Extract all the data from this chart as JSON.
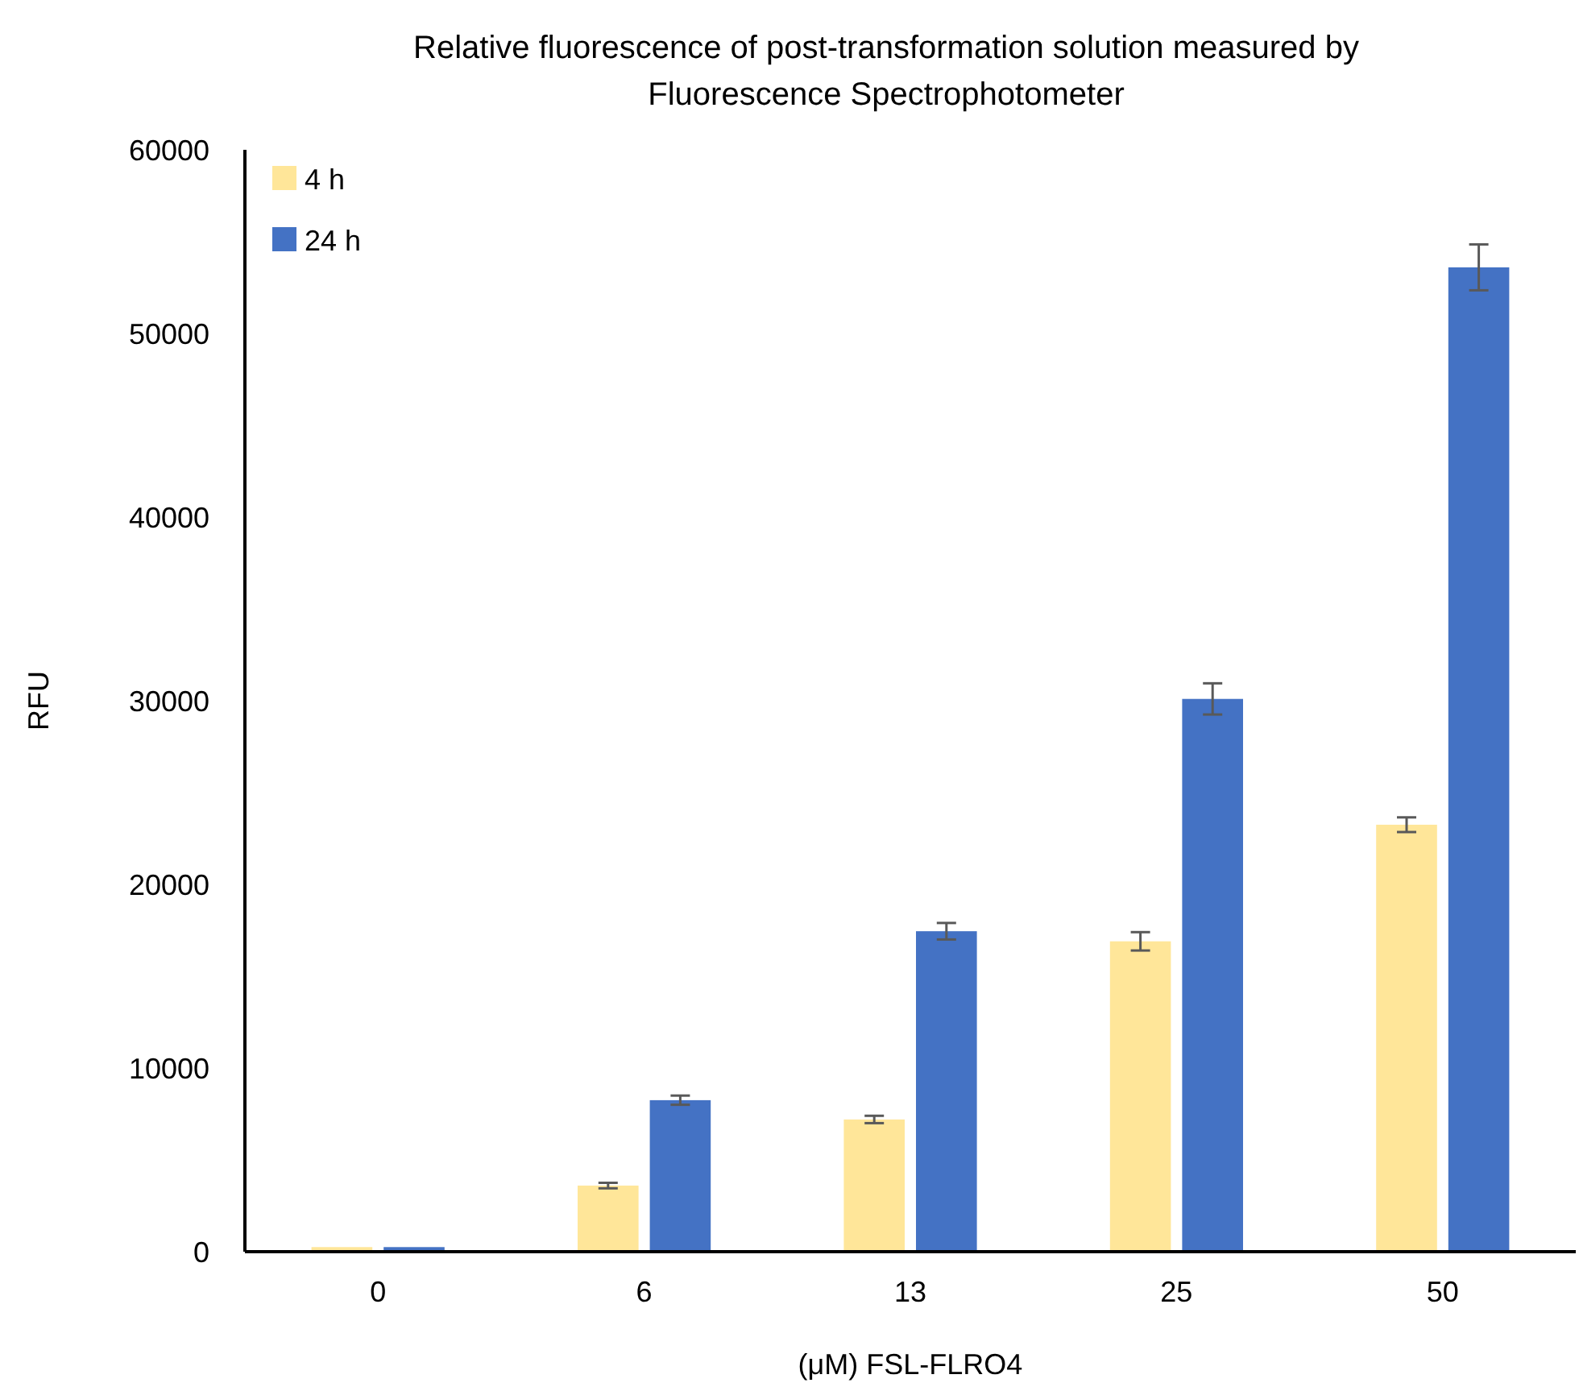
{
  "chart_data": {
    "type": "bar",
    "title": "Relative fluorescence of post-transformation solution measured by Fluorescence Spectrophotometer",
    "xlabel": "(μM) FSL-FLRO4",
    "ylabel": "RFU",
    "categories": [
      "0",
      "6",
      "13",
      "25",
      "50"
    ],
    "series": [
      {
        "name": "4 h",
        "color": "#ffe699",
        "values": [
          250,
          3600,
          7200,
          16900,
          23250
        ],
        "errors": [
          null,
          150,
          200,
          500,
          400
        ]
      },
      {
        "name": "24 h",
        "color": "#4472c4",
        "values": [
          250,
          8250,
          17450,
          30100,
          53600
        ],
        "errors": [
          null,
          250,
          450,
          850,
          1250
        ]
      }
    ],
    "ylim": [
      0,
      60000
    ],
    "yticks": [
      0,
      10000,
      20000,
      30000,
      40000,
      50000,
      60000
    ],
    "legend": "top left"
  }
}
